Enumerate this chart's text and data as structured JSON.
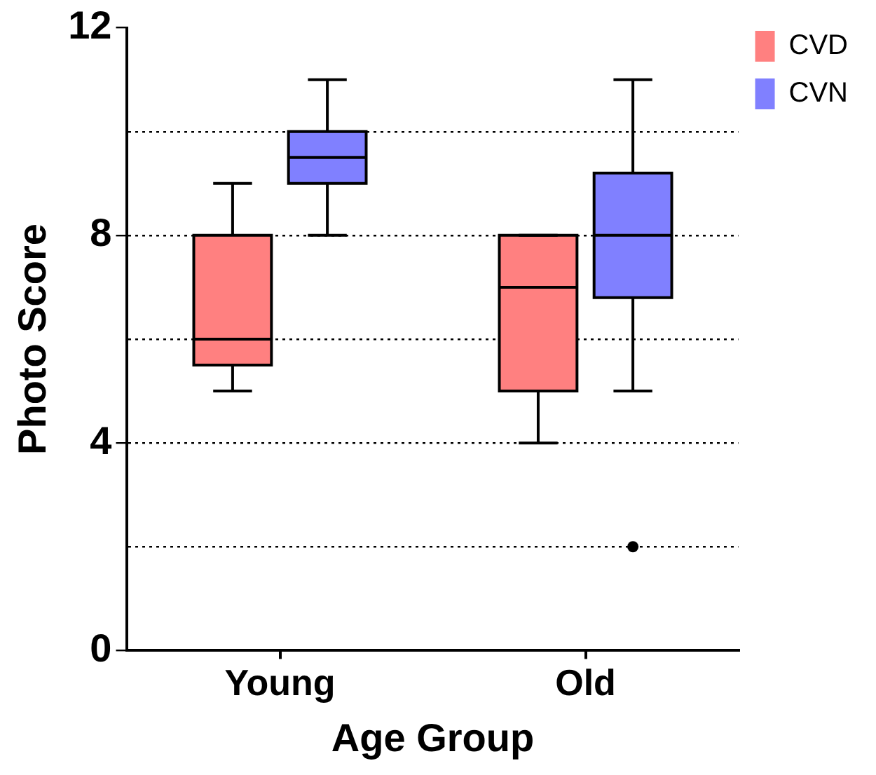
{
  "chart_data": {
    "type": "box",
    "xlabel": "Age Group",
    "ylabel": "Photo Score",
    "categories": [
      "Young",
      "Old"
    ],
    "series": [
      {
        "name": "CVD",
        "color": "#ff8080",
        "boxes": [
          {
            "low": 5,
            "q1": 5.5,
            "median": 6,
            "q3": 8,
            "high": 9
          },
          {
            "low": 4,
            "q1": 5,
            "median": 7,
            "q3": 8,
            "high": 8
          }
        ]
      },
      {
        "name": "CVN",
        "color": "#8080ff",
        "boxes": [
          {
            "low": 8,
            "q1": 9,
            "median": 9.5,
            "q3": 10,
            "high": 11
          },
          {
            "low": 5,
            "q1": 6.8,
            "median": 8,
            "q3": 9.2,
            "high": 11,
            "outliers": [
              2
            ]
          }
        ]
      }
    ],
    "ylim": [
      0,
      12
    ],
    "yticks": [
      0,
      {
        "value": 2,
        "label": null
      },
      4,
      {
        "value": 6,
        "label": null
      },
      8,
      {
        "value": 10,
        "label": null
      },
      12
    ],
    "grid": "y",
    "legend": "top right"
  }
}
